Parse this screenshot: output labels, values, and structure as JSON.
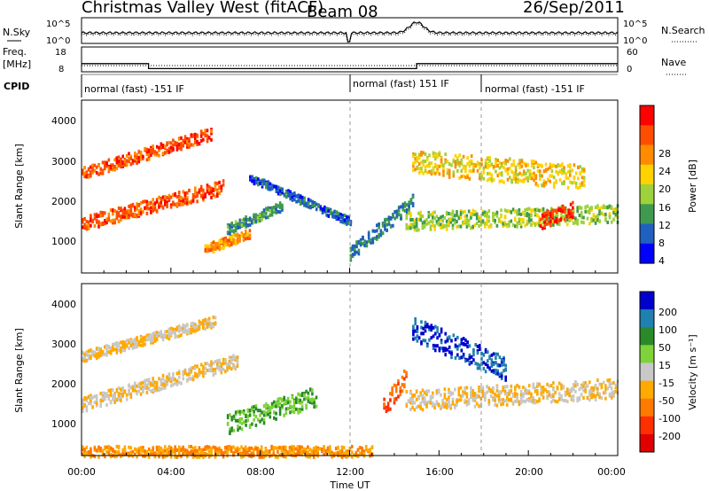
{
  "header": {
    "title": "Christmas Valley West (fitACF)",
    "beam": "Beam 08",
    "date": "26/Sep/2011"
  },
  "nsky_panel": {
    "left_label": "N.Sky",
    "left_ticks": [
      "10^5",
      "10^0"
    ],
    "right_label": "N.Search",
    "right_ticks": [
      "10^5",
      "10^0"
    ]
  },
  "freq_panel": {
    "left_label_1": "Freq.",
    "left_label_2": "[MHz]",
    "left_ticks": [
      "18",
      "8"
    ],
    "right_label": "Nave",
    "right_ticks": [
      "60",
      "0"
    ]
  },
  "cpid_panel": {
    "label": "CPID",
    "modes": [
      {
        "text": "normal (fast) -151 IF",
        "start_hour": 0,
        "end_hour": 12
      },
      {
        "text": "normal (fast) 151 IF",
        "start_hour": 12,
        "end_hour": 18
      },
      {
        "text": "normal (fast) -151 IF",
        "start_hour": 18,
        "end_hour": 24
      }
    ]
  },
  "power_panel": {
    "ylabel": "Slant Range [km]",
    "yticks": [
      "1000",
      "2000",
      "3000",
      "4000"
    ],
    "colorbar_label": "Power [dB]",
    "colorbar_ticks": [
      "28",
      "24",
      "20",
      "16",
      "12",
      "8",
      "4"
    ],
    "colors": [
      "#ff0000",
      "#ff4d00",
      "#ff8c00",
      "#ffd200",
      "#9fd13a",
      "#3f9a50",
      "#2060c0",
      "#0000ff"
    ]
  },
  "velocity_panel": {
    "ylabel": "Slant Range [km]",
    "yticks": [
      "1000",
      "2000",
      "3000",
      "4000"
    ],
    "colorbar_label": "Velocity [m s⁻¹]",
    "colorbar_ticks": [
      "200",
      "100",
      "50",
      "15",
      "-15",
      "-50",
      "-100",
      "-200"
    ],
    "colors": [
      "#0000cc",
      "#2080b0",
      "#2a8a2a",
      "#7ed23a",
      "#c8c8c8",
      "#ffaa00",
      "#ff7a00",
      "#ff3000",
      "#e00000"
    ],
    "ground_scatter_color": "#bebebe"
  },
  "xaxis": {
    "label": "Time UT",
    "ticks": [
      "00:00",
      "04:00",
      "08:00",
      "12:00",
      "16:00",
      "20:00",
      "00:00"
    ]
  },
  "chart_data": {
    "type": "heatmap",
    "title": "Christmas Valley West (fitACF)",
    "x_range_hours": [
      0,
      24
    ],
    "y_range_km": [
      180,
      4500
    ],
    "frequency_mhz": [
      {
        "start_hour": 0,
        "end_hour": 3,
        "value": 12
      },
      {
        "start_hour": 3,
        "end_hour": 15,
        "value": 10
      },
      {
        "start_hour": 15,
        "end_hour": 24,
        "value": 12
      }
    ],
    "nave_level": 20,
    "echo_regions_power": [
      {
        "t0": 0.0,
        "t1": 5.8,
        "r0_start": 2700,
        "r0_end": 3700,
        "width_km": 300,
        "db": 26
      },
      {
        "t0": 0.0,
        "t1": 6.3,
        "r0_start": 1450,
        "r0_end": 2350,
        "width_km": 350,
        "db": 26
      },
      {
        "t0": 5.5,
        "t1": 7.5,
        "r0_start": 800,
        "r0_end": 1200,
        "width_km": 250,
        "db": 22
      },
      {
        "t0": 6.5,
        "t1": 9.0,
        "r0_start": 1300,
        "r0_end": 1900,
        "width_km": 250,
        "db": 10
      },
      {
        "t0": 7.5,
        "t1": 12.0,
        "r0_start": 2600,
        "r0_end": 1500,
        "width_km": 200,
        "db": 6
      },
      {
        "t0": 12.0,
        "t1": 14.8,
        "r0_start": 700,
        "r0_end": 2000,
        "width_km": 350,
        "db": 8
      },
      {
        "t0": 14.5,
        "t1": 24.0,
        "r0_start": 1500,
        "r0_end": 1700,
        "width_km": 450,
        "db": 14
      },
      {
        "t0": 14.8,
        "t1": 22.5,
        "r0_start": 3000,
        "r0_end": 2600,
        "width_km": 600,
        "db": 18
      },
      {
        "t0": 20.5,
        "t1": 22.0,
        "r0_start": 1500,
        "r0_end": 1800,
        "width_km": 400,
        "db": 28
      }
    ],
    "echo_regions_velocity": [
      {
        "t0": 0.0,
        "t1": 6.0,
        "r0_start": 2700,
        "r0_end": 3600,
        "width_km": 250,
        "v": -15
      },
      {
        "t0": 0.0,
        "t1": 7.0,
        "r0_start": 1500,
        "r0_end": 2600,
        "width_km": 350,
        "v": -15
      },
      {
        "t0": 6.5,
        "t1": 10.5,
        "r0_start": 1000,
        "r0_end": 1700,
        "width_km": 500,
        "v": 50
      },
      {
        "t0": 0.0,
        "t1": 13.0,
        "r0_start": 300,
        "r0_end": 300,
        "width_km": 300,
        "v": -50
      },
      {
        "t0": 13.5,
        "t1": 14.5,
        "r0_start": 1400,
        "r0_end": 2200,
        "width_km": 500,
        "v": -100
      },
      {
        "t0": 14.8,
        "t1": 19.0,
        "r0_start": 3400,
        "r0_end": 2400,
        "width_km": 600,
        "v": 200
      },
      {
        "t0": 14.5,
        "t1": 24.0,
        "r0_start": 1600,
        "r0_end": 1900,
        "width_km": 500,
        "v": -15
      }
    ]
  }
}
